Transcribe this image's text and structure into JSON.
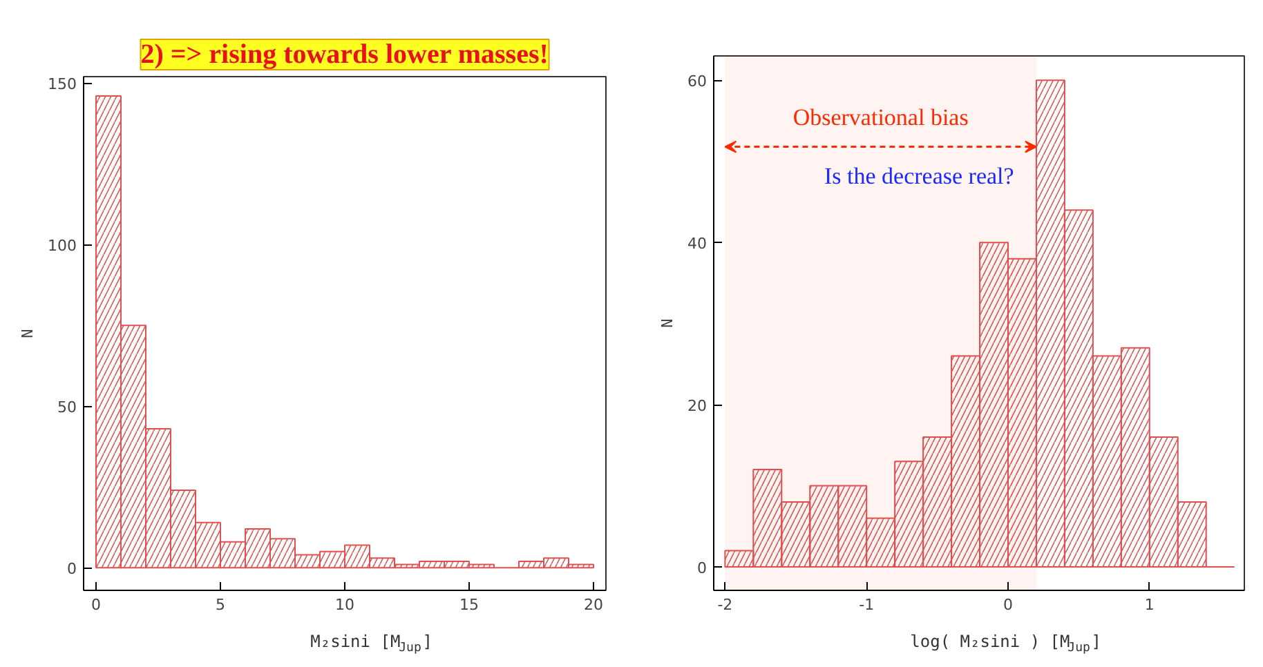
{
  "chart_data": [
    {
      "type": "histogram",
      "title": "2) => rising towards lower masses!",
      "xlabel": "M₂sini [M$_{Jup}$]",
      "ylabel": "N",
      "color": "#e05050",
      "bins": [
        0,
        1,
        2,
        3,
        4,
        5,
        6,
        7,
        8,
        9,
        10,
        11,
        12,
        13,
        14,
        15,
        16,
        17,
        18,
        19,
        20
      ],
      "values": [
        146,
        75,
        43,
        24,
        14,
        8,
        12,
        9,
        4,
        5,
        7,
        3,
        1,
        2,
        2,
        1,
        0,
        2,
        3,
        1
      ],
      "xlim": [
        -0.5,
        20.5
      ],
      "ylim": [
        -7,
        152
      ],
      "xticks": [
        0,
        5,
        10,
        15,
        20
      ],
      "yticks": [
        0,
        50,
        100,
        150
      ],
      "grid": false
    },
    {
      "type": "histogram",
      "xlabel": "log( M₂sini ) [M$_{Jup}$]",
      "ylabel": "N",
      "color": "#e05050",
      "bins": [
        -2,
        -1.8,
        -1.6,
        -1.4,
        -1.2,
        -1,
        -0.8,
        -0.6,
        -0.4,
        -0.2,
        0,
        0.2,
        0.4,
        0.6,
        0.8,
        1,
        1.2,
        1.4,
        1.6
      ],
      "values": [
        2,
        12,
        8,
        10,
        10,
        6,
        13,
        16,
        26,
        40,
        38,
        60,
        44,
        26,
        27,
        16,
        8,
        0
      ],
      "xlim": [
        -2.08,
        1.67
      ],
      "ylim": [
        -2.9,
        63
      ],
      "xticks": [
        -2,
        -1,
        0,
        1
      ],
      "yticks": [
        0,
        20,
        40,
        60
      ],
      "grid": false,
      "bands": [
        {
          "axis": "x",
          "from": -2,
          "to": 0.2,
          "label": "Observational bias",
          "color": "#ff2a00"
        }
      ],
      "annotations": [
        "Is the decrease real?"
      ]
    }
  ]
}
